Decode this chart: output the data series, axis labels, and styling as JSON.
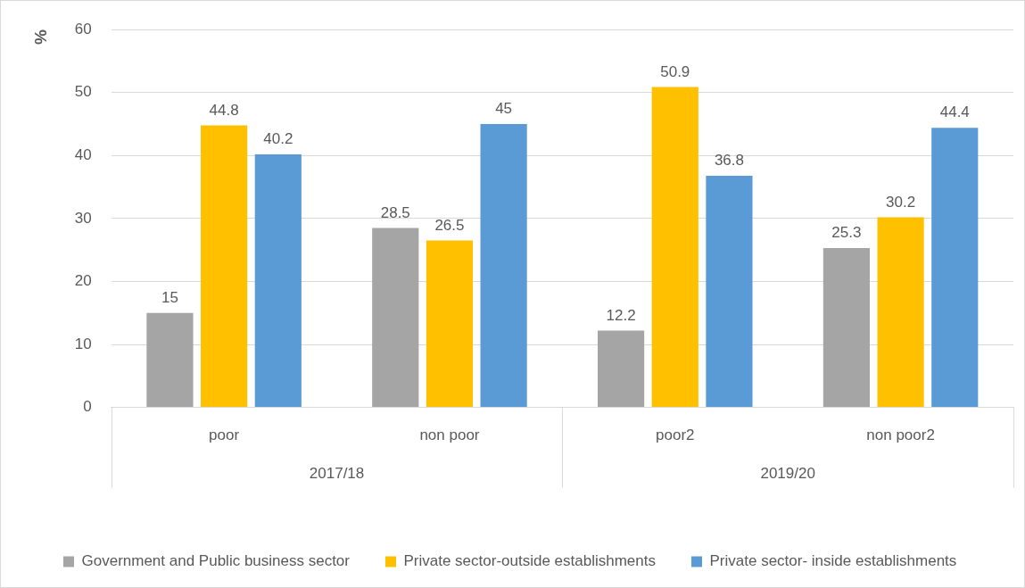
{
  "chart_data": {
    "type": "bar",
    "ylabel": "%",
    "categories": [
      "poor",
      "non poor",
      "poor2",
      "non poor2"
    ],
    "annotations": [
      "2017/18",
      "2019/20"
    ],
    "series": [
      {
        "name": "Government and Public business sector",
        "color": "#a5a5a5",
        "values": [
          15,
          28.5,
          12.2,
          25.3
        ]
      },
      {
        "name": "Private sector-outside establishments",
        "color": "#ffc000",
        "values": [
          44.8,
          26.5,
          50.9,
          30.2
        ]
      },
      {
        "name": "Private sector- inside establishments",
        "color": "#5b9bd5",
        "values": [
          40.2,
          45,
          36.8,
          44.4
        ]
      }
    ],
    "ylim": [
      0,
      60
    ],
    "yticks": [
      0,
      10,
      20,
      30,
      40,
      50,
      60
    ],
    "grid": "y",
    "legend": "bottom",
    "data_labels": true
  }
}
